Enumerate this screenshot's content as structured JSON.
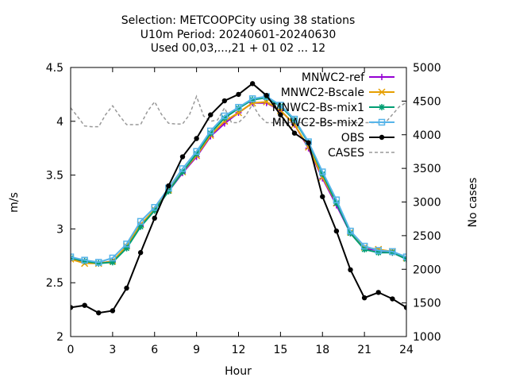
{
  "chart_data": {
    "type": "line",
    "title_lines": [
      "Selection: METCOOPCity using    38 stations",
      "U10m   Period: 20240601-20240630",
      "Used 00,03,...,21 + 01 02 ... 12"
    ],
    "xlabel": "Hour",
    "ylabel": "m/s",
    "y2label": "No cases",
    "xlim": [
      0,
      24
    ],
    "ylim": [
      2,
      4.5
    ],
    "y2lim": [
      1000,
      5000
    ],
    "xticks": [
      "0",
      "3",
      "6",
      "9",
      "12",
      "15",
      "18",
      "21",
      "24"
    ],
    "yticks": [
      "2",
      "2.5",
      "3",
      "3.5",
      "4",
      "4.5"
    ],
    "y2ticks": [
      "1000",
      "1500",
      "2000",
      "2500",
      "3000",
      "3500",
      "4000",
      "4500",
      "5000"
    ],
    "grid": false,
    "legend_position": "top-right",
    "x": [
      0,
      1,
      2,
      3,
      4,
      5,
      6,
      7,
      8,
      9,
      10,
      11,
      12,
      13,
      14,
      15,
      16,
      17,
      18,
      19,
      20,
      21,
      22,
      23,
      24
    ],
    "series": [
      {
        "name": "MNWC2-ref",
        "color": "#9400d3",
        "marker": "plus",
        "values": [
          2.72,
          2.7,
          2.68,
          2.7,
          2.83,
          3.03,
          3.18,
          3.35,
          3.52,
          3.67,
          3.86,
          3.98,
          4.08,
          4.17,
          4.17,
          4.1,
          3.97,
          3.75,
          3.47,
          3.22,
          2.96,
          2.82,
          2.8,
          2.78,
          2.72
        ]
      },
      {
        "name": "MNWC2-Bscale",
        "color": "#e69f00",
        "marker": "x",
        "values": [
          2.72,
          2.68,
          2.68,
          2.7,
          2.84,
          3.04,
          3.18,
          3.36,
          3.53,
          3.68,
          3.87,
          4.0,
          4.08,
          4.17,
          4.18,
          4.1,
          3.97,
          3.76,
          3.48,
          3.24,
          2.97,
          2.83,
          2.81,
          2.79,
          2.73
        ]
      },
      {
        "name": "MNWC2-Bs-mix1",
        "color": "#009e73",
        "marker": "star",
        "values": [
          2.73,
          2.7,
          2.68,
          2.69,
          2.82,
          3.02,
          3.17,
          3.35,
          3.53,
          3.7,
          3.89,
          4.03,
          4.12,
          4.2,
          4.22,
          4.14,
          4.01,
          3.8,
          3.51,
          3.24,
          2.96,
          2.81,
          2.78,
          2.78,
          2.72
        ]
      },
      {
        "name": "MNWC2-Bs-mix2",
        "color": "#56b4e9",
        "marker": "box",
        "values": [
          2.74,
          2.71,
          2.69,
          2.73,
          2.86,
          3.07,
          3.2,
          3.38,
          3.56,
          3.72,
          3.91,
          4.05,
          4.13,
          4.21,
          4.23,
          4.15,
          4.02,
          3.81,
          3.53,
          3.27,
          2.98,
          2.84,
          2.8,
          2.79,
          2.74
        ]
      },
      {
        "name": "OBS",
        "color": "#000000",
        "marker": "filled-circle",
        "values": [
          2.27,
          2.29,
          2.22,
          2.24,
          2.45,
          2.78,
          3.1,
          3.4,
          3.67,
          3.84,
          4.06,
          4.19,
          4.25,
          4.35,
          4.24,
          4.06,
          3.89,
          3.8,
          3.3,
          2.98,
          2.62,
          2.36,
          2.41,
          2.35,
          2.27
        ]
      }
    ],
    "cases": {
      "name": "CASES",
      "color": "#999999",
      "axis": "y2",
      "x": [
        0,
        0.5,
        1,
        1.5,
        2,
        2.5,
        3,
        3.5,
        4,
        4.5,
        5,
        5.5,
        6,
        6.5,
        7,
        7.5,
        8,
        8.5,
        9,
        9.5,
        10,
        10.5,
        11,
        11.5,
        12,
        12.5,
        13,
        13.5,
        14,
        14.5,
        15,
        15.5,
        16,
        16.5,
        17,
        17.5,
        18,
        18.5,
        19,
        19.5,
        20,
        20.5,
        21,
        21.5,
        22,
        22.5,
        23,
        23.5,
        24
      ],
      "values": [
        4400,
        4270,
        4130,
        4120,
        4120,
        4300,
        4430,
        4280,
        4150,
        4150,
        4150,
        4350,
        4490,
        4300,
        4170,
        4160,
        4160,
        4300,
        4570,
        4280,
        4200,
        4220,
        4400,
        4180,
        4180,
        4280,
        4450,
        4280,
        4180,
        4180,
        4180,
        4180,
        4180,
        4180,
        4180,
        4180,
        4180,
        4180,
        4180,
        4180,
        4180,
        4180,
        4180,
        4180,
        4180,
        4180,
        4300,
        4420,
        4480
      ]
    }
  }
}
